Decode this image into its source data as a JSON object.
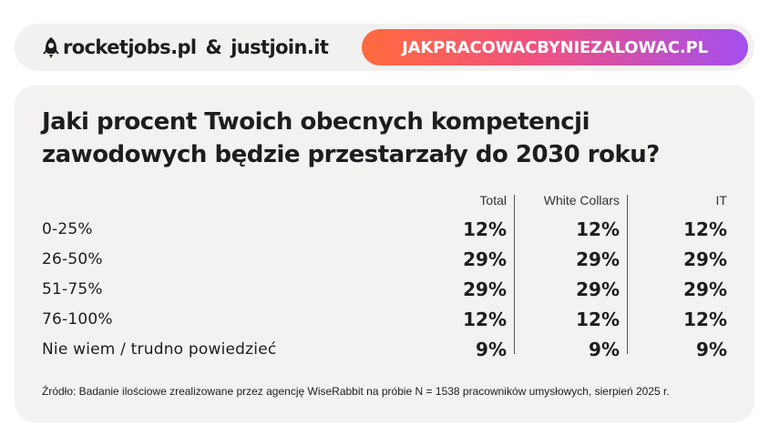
{
  "header": {
    "brand_left": "rocketjobs.pl",
    "ampersand": "&",
    "brand_right": "justjoin.it",
    "url": "JAKPRACOWACBYNIEZALOWAC.PL"
  },
  "chart_data": {
    "type": "table",
    "title": "Jaki procent Twoich obecnych kompetencji zawodowych będzie przestarzały do 2030 roku?",
    "columns": [
      "Total",
      "White Collars",
      "IT"
    ],
    "rows": [
      {
        "label": "0-25%",
        "values": [
          "12%",
          "12%",
          "12%"
        ]
      },
      {
        "label": "26-50%",
        "values": [
          "29%",
          "29%",
          "29%"
        ]
      },
      {
        "label": "51-75%",
        "values": [
          "29%",
          "29%",
          "29%"
        ]
      },
      {
        "label": "76-100%",
        "values": [
          "12%",
          "12%",
          "12%"
        ]
      },
      {
        "label": "Nie wiem / trudno powiedzieć",
        "values": [
          "9%",
          "9%",
          "9%"
        ]
      }
    ],
    "source": "Źródło: Badanie ilościowe zrealizowane przez agencję WiseRabbit na próbie N = 1538 pracowników umysłowych, sierpień 2025 r."
  },
  "colors": {
    "card_bg": "#f3f2f0",
    "pill_gradient_start": "#ff6b3d",
    "pill_gradient_end": "#a34ff0",
    "text": "#1d1d1f"
  }
}
